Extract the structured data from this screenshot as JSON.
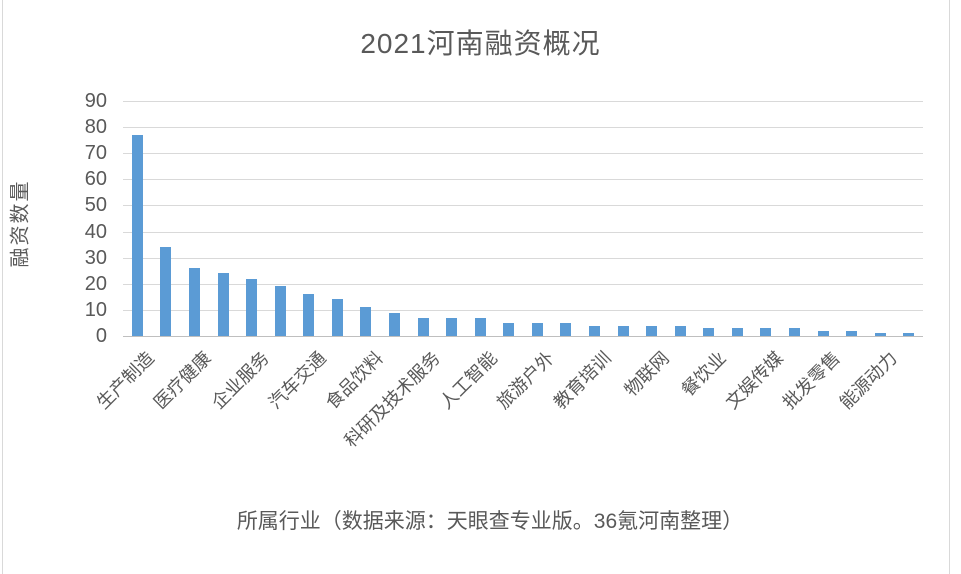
{
  "chart_data": {
    "type": "bar",
    "title": "2021河南融资概况",
    "ylabel": "融资数量",
    "xlabel": "所属行业（数据来源：天眼查专业版。36氪河南整理）",
    "ylim": [
      0,
      90
    ],
    "yticks": [
      0,
      10,
      20,
      30,
      40,
      50,
      60,
      70,
      80,
      90
    ],
    "grid": "horizontal",
    "legend": "none",
    "bar_color": "#5b9bd5",
    "text_color": "#595959",
    "gridline_color": "#d9d9d9",
    "label_note": "category labels rendered for every other bar only",
    "categories": [
      "生产制造",
      "",
      "医疗健康",
      "",
      "企业服务",
      "",
      "汽车交通",
      "",
      "食品饮料",
      "",
      "科研及技术服务",
      "",
      "人工智能",
      "",
      "旅游户外",
      "",
      "教育培训",
      "",
      "物联网",
      "",
      "餐饮业",
      "",
      "文娱传媒",
      "",
      "批发零售",
      "",
      "能源动力",
      ""
    ],
    "values": [
      77,
      34,
      26,
      24,
      22,
      19,
      16,
      14,
      11,
      9,
      7,
      7,
      7,
      5,
      5,
      5,
      4,
      4,
      4,
      4,
      3,
      3,
      3,
      3,
      2,
      2,
      1,
      1
    ]
  }
}
